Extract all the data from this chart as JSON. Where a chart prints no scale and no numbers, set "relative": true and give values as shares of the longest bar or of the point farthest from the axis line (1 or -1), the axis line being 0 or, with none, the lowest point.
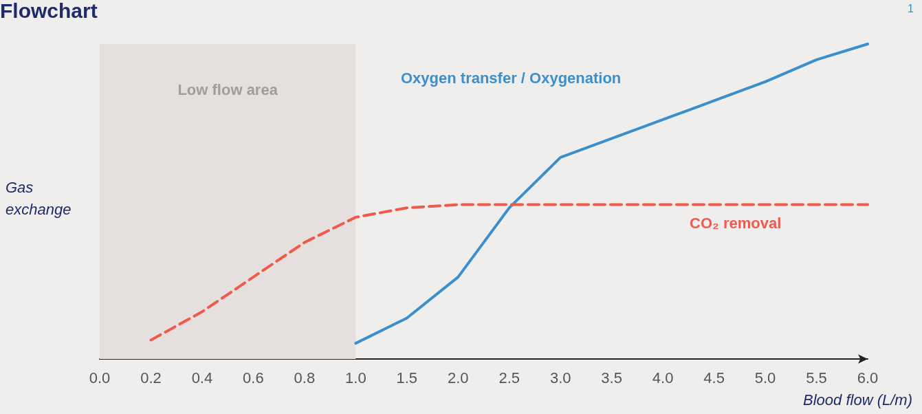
{
  "chart_data": {
    "type": "line",
    "title": "Flowchart",
    "relative": true,
    "xlabel": "Blood flow (L/m)",
    "ylabel": "Gas\nexchange",
    "categories": [
      "0.0",
      "0.2",
      "0.4",
      "0.6",
      "0.8",
      "1.0",
      "1.5",
      "2.0",
      "2.5",
      "3.0",
      "3.5",
      "4.0",
      "4.5",
      "5.0",
      "5.5",
      "6.0"
    ],
    "series": [
      {
        "name": "Oxygen transfer / Oxygenation",
        "color": "#3a8fcc",
        "line_style": "solid",
        "values": [
          null,
          null,
          null,
          null,
          null,
          0.05,
          0.13,
          0.26,
          0.48,
          0.64,
          0.7,
          0.76,
          0.82,
          0.88,
          0.95,
          1.0
        ]
      },
      {
        "name": "CO₂ removal",
        "color": "#ef5a4d",
        "line_style": "dashed",
        "values": [
          null,
          0.06,
          0.15,
          0.26,
          0.37,
          0.45,
          0.48,
          0.49,
          0.49,
          0.49,
          0.49,
          0.49,
          0.49,
          0.49,
          0.49,
          0.49
        ]
      }
    ],
    "bands": [
      {
        "axis": "x",
        "from": "0.0",
        "to": "1.0",
        "label": "Low flow area",
        "color": "#e5e0de"
      }
    ],
    "annotations": [
      "1"
    ],
    "marker": "none",
    "grid": false,
    "legend": false
  }
}
